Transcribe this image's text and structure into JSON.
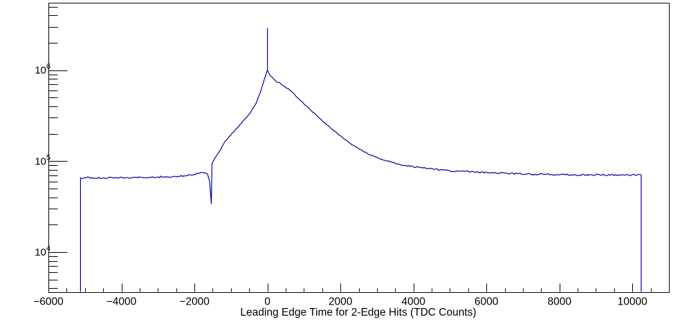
{
  "figure": {
    "background": "#ffffff",
    "axis_color": "#000000"
  },
  "chart_data": {
    "type": "line",
    "style": "log-scale histogram (ROOT-style), single series drawn as step/line",
    "title": "",
    "xlabel": "Leading Edge Time for 2-Edge Hits (TDC Counts)",
    "ylabel": "",
    "grid": false,
    "legend": false,
    "x_axis": {
      "min": -6000,
      "max": 11000,
      "major_step": 2000,
      "minor_step": 500,
      "tick_values": [
        -6000,
        -4000,
        -2000,
        0,
        2000,
        4000,
        6000,
        8000,
        10000
      ],
      "tick_labels": [
        "−6000",
        "−4000",
        "−2000",
        "0",
        "2000",
        "4000",
        "6000",
        "8000",
        "10000"
      ]
    },
    "y_axis": {
      "scale": "log",
      "min": 3630,
      "max": 5510000,
      "tick_labels": [
        {
          "base": "10",
          "exp": "4",
          "value": 10000
        },
        {
          "base": "10",
          "exp": "5",
          "value": 100000
        },
        {
          "base": "10",
          "exp": "6",
          "value": 1000000
        }
      ]
    },
    "series": [
      {
        "name": "leading-edge-time-2edge-hits",
        "color": "#000099",
        "data_range": [
          -5120,
          10240
        ],
        "spike": {
          "x": 0,
          "base": 1000000,
          "top": 2900000
        },
        "points": [
          [
            -5120,
            65500
          ],
          [
            -4800,
            65600
          ],
          [
            -4480,
            65600
          ],
          [
            -4000,
            66000
          ],
          [
            -3540,
            66600
          ],
          [
            -3000,
            67100
          ],
          [
            -2590,
            67600
          ],
          [
            -2300,
            68900
          ],
          [
            -2020,
            71400
          ],
          [
            -1890,
            73300
          ],
          [
            -1774,
            75100
          ],
          [
            -1700,
            74500
          ],
          [
            -1641,
            72000
          ],
          [
            -1584,
            60000
          ],
          [
            -1550,
            40000
          ],
          [
            -1537,
            34000
          ],
          [
            -1519,
            94000
          ],
          [
            -1452,
            106000
          ],
          [
            -1300,
            131000
          ],
          [
            -1167,
            164000
          ],
          [
            -940,
            207000
          ],
          [
            -693,
            268000
          ],
          [
            -504,
            325000
          ],
          [
            -314,
            430000
          ],
          [
            -182,
            590000
          ],
          [
            -87,
            790000
          ],
          [
            -30,
            930000
          ],
          [
            0,
            1000000
          ],
          [
            63,
            890000
          ],
          [
            215,
            770000
          ],
          [
            385,
            700000
          ],
          [
            631,
            600000
          ],
          [
            916,
            460000
          ],
          [
            1200,
            360000
          ],
          [
            1484,
            283000
          ],
          [
            1769,
            225000
          ],
          [
            2053,
            182000
          ],
          [
            2338,
            150000
          ],
          [
            2622,
            128000
          ],
          [
            2906,
            113000
          ],
          [
            3285,
            100000
          ],
          [
            3759,
            90000
          ],
          [
            4271,
            84000
          ],
          [
            4991,
            78500
          ],
          [
            5939,
            75000
          ],
          [
            7076,
            72000
          ],
          [
            8782,
            70600
          ],
          [
            10240,
            70500
          ]
        ]
      }
    ]
  }
}
